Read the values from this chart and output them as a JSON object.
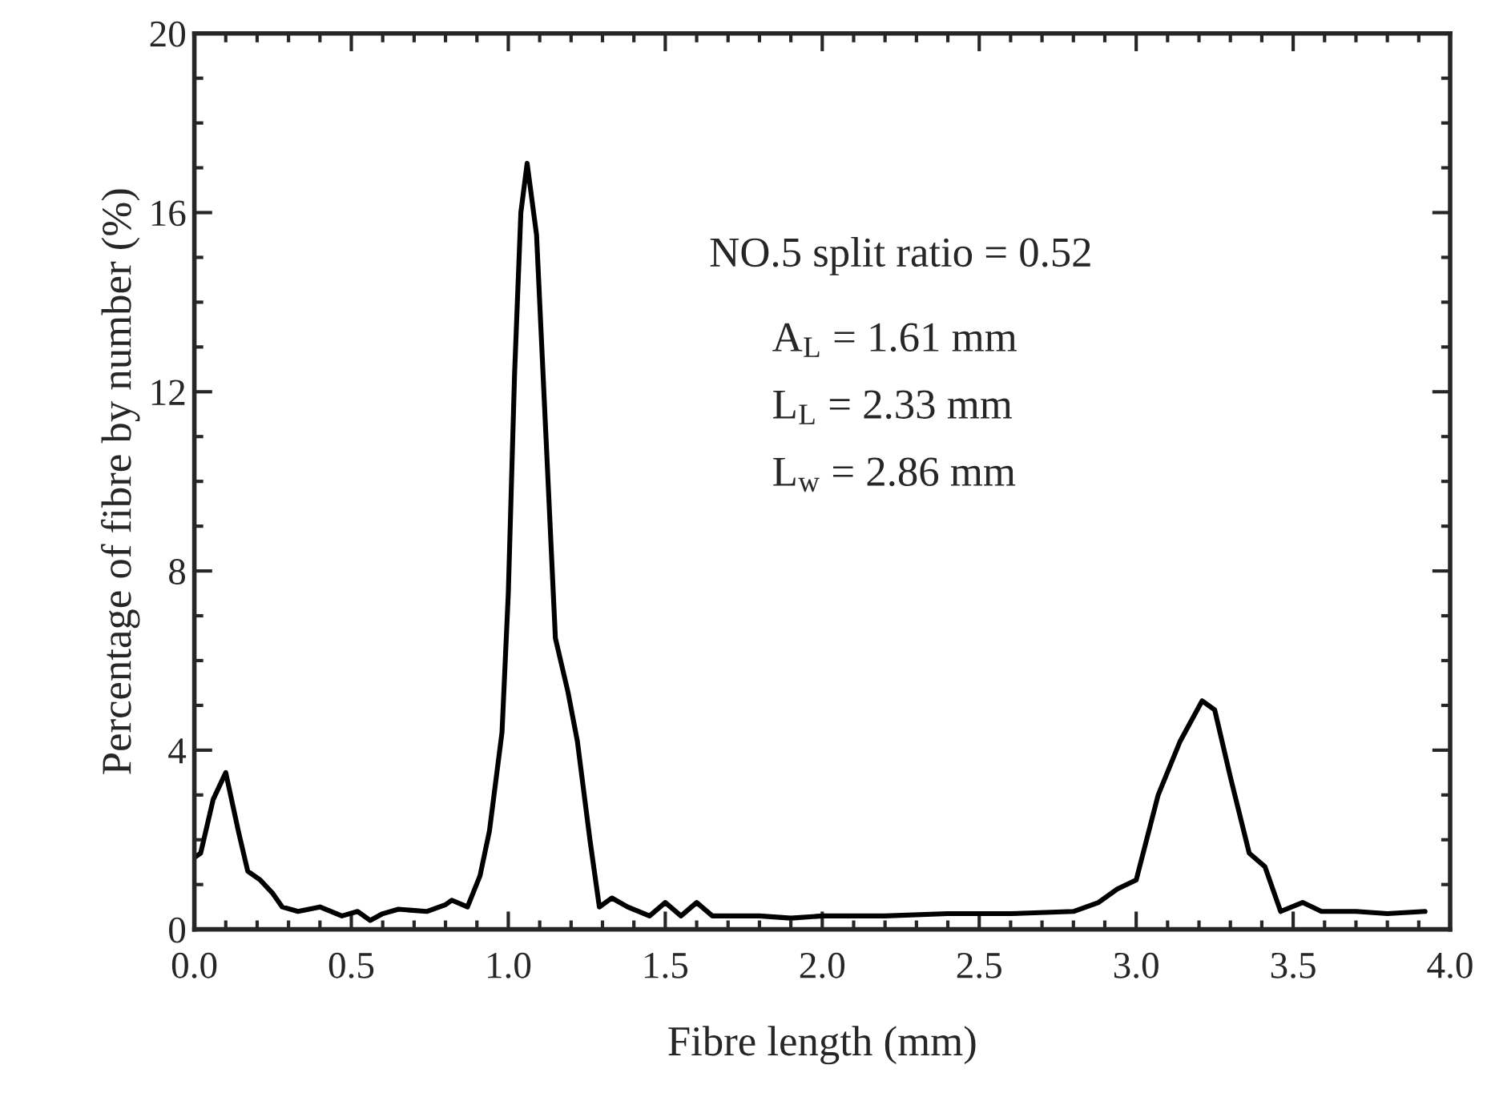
{
  "chart_data": {
    "type": "line",
    "xlabel": "Fibre length (mm)",
    "ylabel": "Percentage of fibre by number (%)",
    "x": [
      0.0,
      0.02,
      0.06,
      0.1,
      0.14,
      0.17,
      0.21,
      0.25,
      0.28,
      0.33,
      0.4,
      0.47,
      0.52,
      0.56,
      0.6,
      0.65,
      0.74,
      0.8,
      0.82,
      0.87,
      0.91,
      0.94,
      0.98,
      1.0,
      1.02,
      1.04,
      1.06,
      1.09,
      1.12,
      1.15,
      1.19,
      1.22,
      1.26,
      1.29,
      1.33,
      1.38,
      1.45,
      1.5,
      1.55,
      1.6,
      1.65,
      1.7,
      1.8,
      1.9,
      2.0,
      2.2,
      2.4,
      2.6,
      2.8,
      2.88,
      2.94,
      3.0,
      3.07,
      3.14,
      3.21,
      3.25,
      3.3,
      3.36,
      3.41,
      3.46,
      3.53,
      3.59,
      3.7,
      3.8,
      3.92
    ],
    "series": [
      {
        "color": "#000000",
        "values": [
          1.6,
          1.7,
          2.9,
          3.5,
          2.2,
          1.3,
          1.1,
          0.8,
          0.5,
          0.4,
          0.5,
          0.3,
          0.4,
          0.2,
          0.35,
          0.45,
          0.4,
          0.55,
          0.65,
          0.5,
          1.2,
          2.2,
          4.4,
          7.5,
          12.4,
          16.0,
          17.1,
          15.5,
          11.0,
          6.5,
          5.3,
          4.2,
          2.0,
          0.5,
          0.7,
          0.5,
          0.3,
          0.6,
          0.3,
          0.6,
          0.3,
          0.3,
          0.3,
          0.25,
          0.3,
          0.3,
          0.35,
          0.35,
          0.4,
          0.6,
          0.9,
          1.1,
          3.0,
          4.2,
          5.1,
          4.9,
          3.4,
          1.7,
          1.4,
          0.4,
          0.6,
          0.4,
          0.4,
          0.35,
          0.4
        ]
      }
    ],
    "xlim": [
      0,
      4
    ],
    "ylim": [
      0,
      20
    ],
    "xticks": [
      {
        "value": 0,
        "label": "0.0"
      },
      {
        "value": 0.5,
        "label": "0.5"
      },
      {
        "value": 1,
        "label": "1.0"
      },
      {
        "value": 1.5,
        "label": "1.5"
      },
      {
        "value": 2,
        "label": "2.0"
      },
      {
        "value": 2.5,
        "label": "2.5"
      },
      {
        "value": 3,
        "label": "3.0"
      },
      {
        "value": 3.5,
        "label": "3.5"
      },
      {
        "value": 4,
        "label": "4.0"
      }
    ],
    "yticks": [
      0,
      4,
      8,
      12,
      16,
      20
    ],
    "annotations": [
      "NO.5 split ratio = 0.52",
      "A$_{L}$ = 1.61 mm",
      "L$_{L}$ = 2.33 mm",
      "L$_{w}$ = 2.86 mm"
    ],
    "marker": "none",
    "line_style": "solid"
  }
}
